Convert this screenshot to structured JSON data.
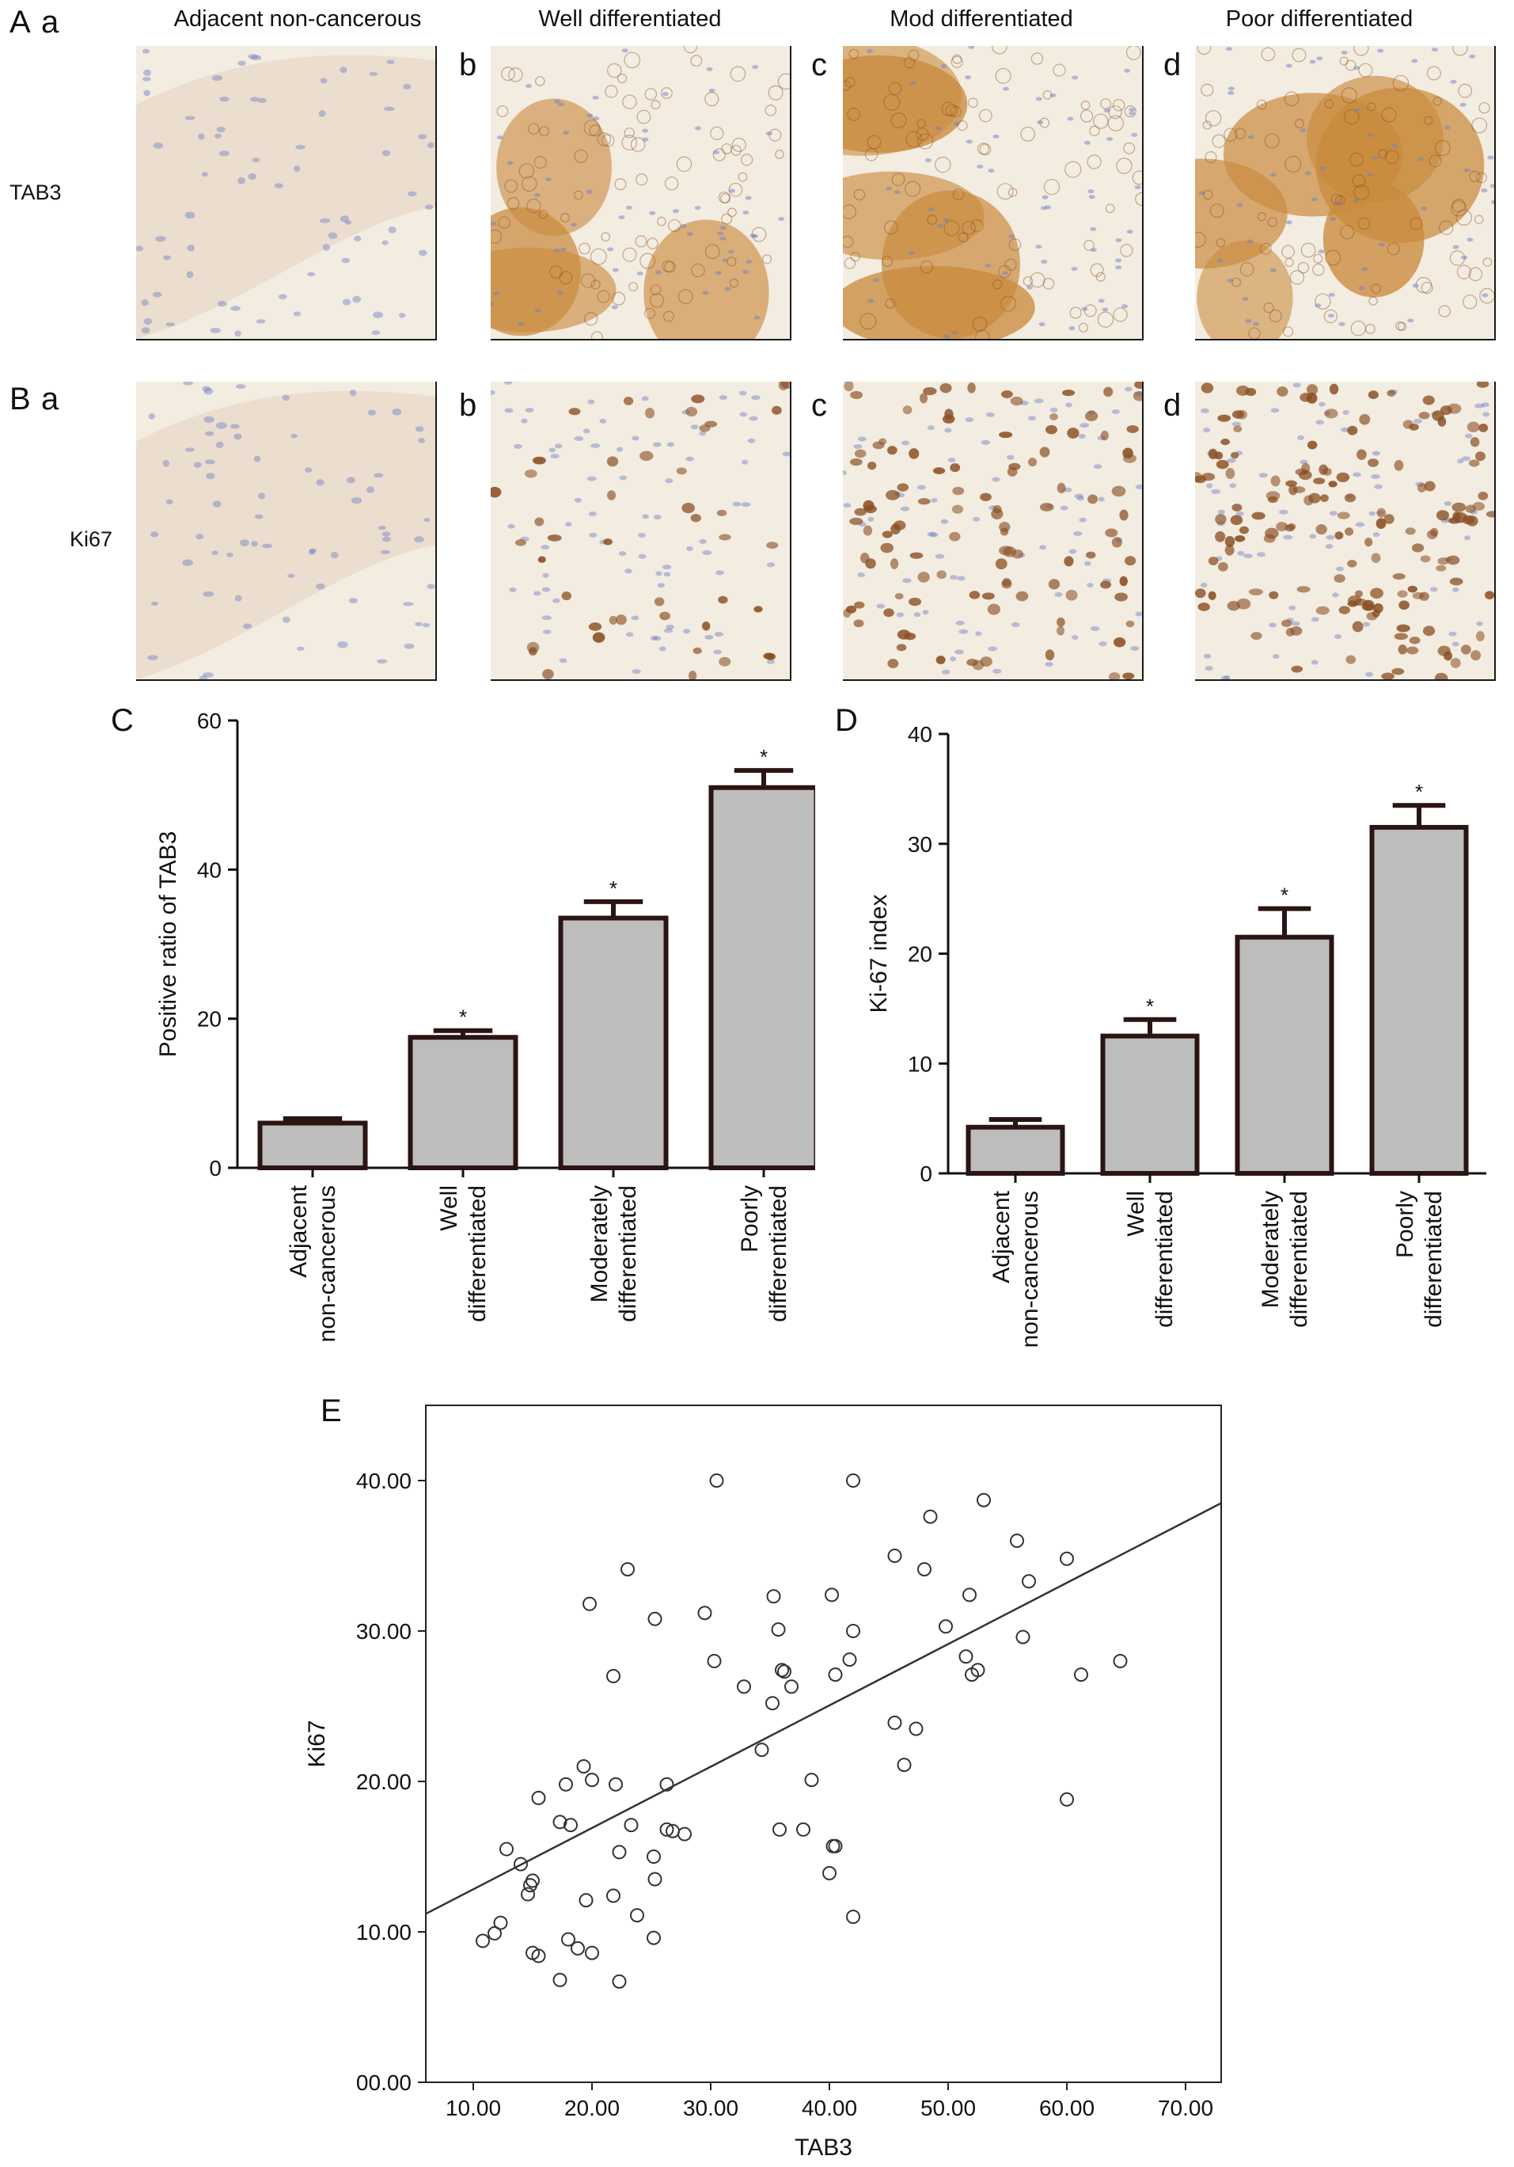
{
  "panel_letters": {
    "A": "A",
    "B": "B",
    "C": "C",
    "D": "D",
    "E": "E"
  },
  "sub_letters": {
    "a": "a",
    "b": "b",
    "c": "c",
    "d": "d"
  },
  "column_headers": [
    "Adjacent non-cancerous",
    "Well differentiated",
    "Mod differentiated",
    "Poor differentiated"
  ],
  "row_labels": {
    "row_A": "TAB3",
    "row_B": "Ki67"
  },
  "micrographs": {
    "stain_colors": {
      "background": "#f3ece1",
      "tissue": "#e9dccb",
      "brown": "#c98a3c",
      "dark_brown": "#8a4f22",
      "hematoxylin": "#6f7fc4"
    }
  },
  "chart_data": [
    {
      "id": "C",
      "type": "bar",
      "categories": [
        [
          "Adjacent",
          "non-cancerous"
        ],
        [
          "Well",
          "differentiated"
        ],
        [
          "Moderately",
          "differentiated"
        ],
        [
          "Poorly",
          "differentiated"
        ]
      ],
      "values": [
        6,
        17.5,
        33.5,
        51
      ],
      "errors": [
        0.6,
        0.9,
        2.2,
        2.3
      ],
      "significance": [
        "",
        "*",
        "*",
        "*"
      ],
      "ylabel": "Positive ratio of TAB3",
      "ylim": [
        0,
        60
      ],
      "yticks": [
        0,
        20,
        40,
        60
      ],
      "bar_color": "#bdbdbd"
    },
    {
      "id": "D",
      "type": "bar",
      "categories": [
        [
          "Adjacent",
          "non-cancerous"
        ],
        [
          "Well",
          "differentiated"
        ],
        [
          "Moderately",
          "differentiated"
        ],
        [
          "Poorly",
          "differentiated"
        ]
      ],
      "values": [
        4.2,
        12.5,
        21.5,
        31.5
      ],
      "errors": [
        0.7,
        1.5,
        2.6,
        2.0
      ],
      "significance": [
        "",
        "*",
        "*",
        "*"
      ],
      "ylabel": "Ki-67 index",
      "ylim": [
        0,
        40
      ],
      "yticks": [
        0,
        10,
        20,
        30,
        40
      ],
      "bar_color": "#bdbdbd"
    },
    {
      "id": "E",
      "type": "scatter",
      "xlabel": "TAB3",
      "ylabel": "Ki67",
      "xlim": [
        6,
        73
      ],
      "ylim": [
        0,
        45
      ],
      "xticks": [
        "10.00",
        "20.00",
        "30.00",
        "40.00",
        "50.00",
        "60.00",
        "70.00"
      ],
      "yticks": [
        "00.00",
        "10.00",
        "20.00",
        "30.00",
        "40.00"
      ],
      "fit_line": {
        "x": [
          6,
          73
        ],
        "y": [
          11.2,
          38.5
        ]
      },
      "points": [
        [
          30.5,
          40.0
        ],
        [
          42.0,
          40.0
        ],
        [
          53.0,
          38.7
        ],
        [
          48.5,
          37.6
        ],
        [
          55.8,
          36.0
        ],
        [
          23.0,
          34.1
        ],
        [
          45.5,
          35.0
        ],
        [
          48.0,
          34.1
        ],
        [
          60.0,
          34.8
        ],
        [
          56.8,
          33.3
        ],
        [
          35.3,
          32.3
        ],
        [
          40.2,
          32.4
        ],
        [
          51.8,
          32.4
        ],
        [
          19.8,
          31.8
        ],
        [
          29.5,
          31.2
        ],
        [
          25.3,
          30.8
        ],
        [
          35.7,
          30.1
        ],
        [
          42.0,
          30.0
        ],
        [
          49.8,
          30.3
        ],
        [
          56.3,
          29.6
        ],
        [
          30.3,
          28.0
        ],
        [
          41.7,
          28.1
        ],
        [
          51.5,
          28.3
        ],
        [
          64.5,
          28.0
        ],
        [
          36.0,
          27.4
        ],
        [
          36.2,
          27.3
        ],
        [
          40.5,
          27.1
        ],
        [
          52.0,
          27.1
        ],
        [
          52.5,
          27.4
        ],
        [
          61.2,
          27.1
        ],
        [
          21.8,
          27.0
        ],
        [
          32.8,
          26.3
        ],
        [
          36.8,
          26.3
        ],
        [
          35.2,
          25.2
        ],
        [
          45.5,
          23.9
        ],
        [
          47.3,
          23.5
        ],
        [
          34.3,
          22.1
        ],
        [
          46.3,
          21.1
        ],
        [
          19.3,
          21.0
        ],
        [
          20.0,
          20.1
        ],
        [
          38.5,
          20.1
        ],
        [
          17.8,
          19.8
        ],
        [
          22.0,
          19.8
        ],
        [
          26.3,
          19.8
        ],
        [
          15.5,
          18.9
        ],
        [
          60.0,
          18.8
        ],
        [
          17.3,
          17.3
        ],
        [
          18.2,
          17.1
        ],
        [
          23.3,
          17.1
        ],
        [
          26.3,
          16.8
        ],
        [
          26.8,
          16.7
        ],
        [
          27.8,
          16.5
        ],
        [
          35.8,
          16.8
        ],
        [
          37.8,
          16.8
        ],
        [
          40.3,
          15.7
        ],
        [
          40.5,
          15.7
        ],
        [
          12.8,
          15.5
        ],
        [
          22.3,
          15.3
        ],
        [
          25.2,
          15.0
        ],
        [
          14.0,
          14.5
        ],
        [
          40.0,
          13.9
        ],
        [
          15.0,
          13.4
        ],
        [
          25.3,
          13.5
        ],
        [
          14.8,
          13.1
        ],
        [
          14.6,
          12.5
        ],
        [
          21.8,
          12.4
        ],
        [
          19.5,
          12.1
        ],
        [
          23.8,
          11.1
        ],
        [
          42.0,
          11.0
        ],
        [
          12.3,
          10.6
        ],
        [
          11.8,
          9.9
        ],
        [
          10.8,
          9.4
        ],
        [
          18.0,
          9.5
        ],
        [
          25.2,
          9.6
        ],
        [
          18.8,
          8.9
        ],
        [
          20.0,
          8.6
        ],
        [
          15.0,
          8.6
        ],
        [
          15.5,
          8.4
        ],
        [
          17.3,
          6.8
        ],
        [
          22.3,
          6.7
        ]
      ]
    }
  ]
}
